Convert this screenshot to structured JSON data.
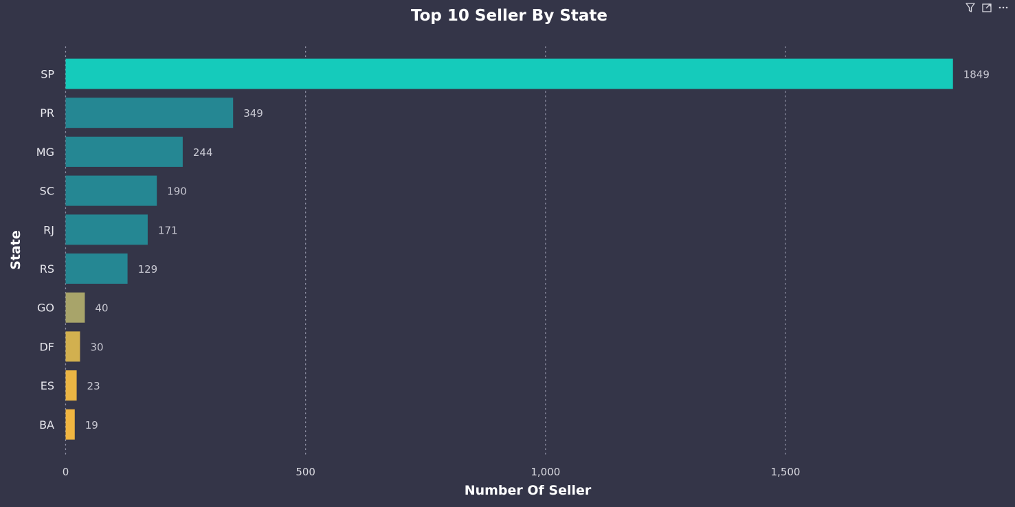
{
  "chart_data": {
    "type": "bar",
    "orientation": "horizontal",
    "title": "Top 10 Seller By State",
    "xlabel": "Number Of Seller",
    "ylabel": "State",
    "categories": [
      "SP",
      "PR",
      "MG",
      "SC",
      "RJ",
      "RS",
      "GO",
      "DF",
      "ES",
      "BA"
    ],
    "values": [
      1849,
      349,
      244,
      190,
      171,
      129,
      40,
      30,
      23,
      19
    ],
    "data_labels": [
      "1849",
      "349",
      "244",
      "190",
      "171",
      "129",
      "40",
      "30",
      "23",
      "19"
    ],
    "bar_colors": [
      "#15cbbb",
      "#258793",
      "#258793",
      "#258793",
      "#258793",
      "#258793",
      "#a8a46a",
      "#d2b04f",
      "#ebb544",
      "#f0b541"
    ],
    "xlim": [
      0,
      1849
    ],
    "xticks": [
      0,
      500,
      1000,
      1500
    ],
    "xtick_labels": [
      "0",
      "500",
      "1,000",
      "1,500"
    ],
    "grid": "vertical dotted",
    "legend": "none"
  },
  "toolbar": {
    "icons": [
      "filter-icon",
      "focus-mode-icon",
      "more-options-icon"
    ]
  },
  "colors": {
    "background": "#343548",
    "gridline": "#8e8fa3"
  }
}
